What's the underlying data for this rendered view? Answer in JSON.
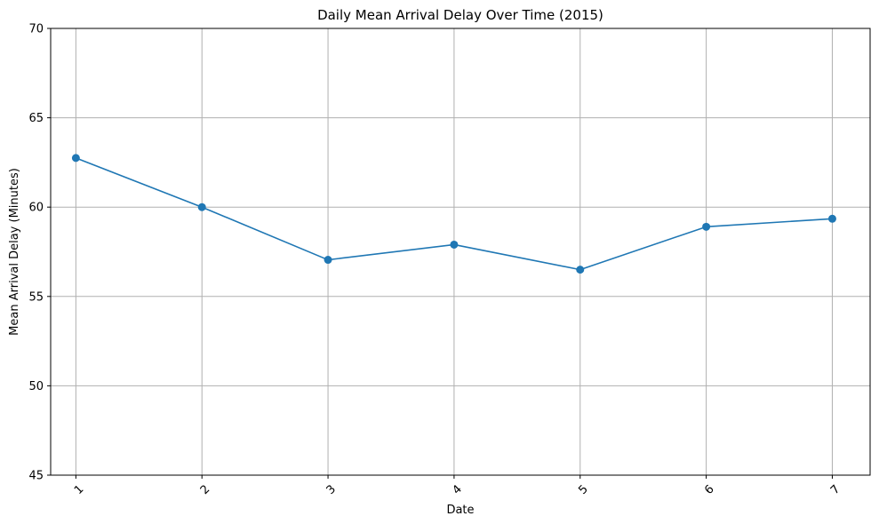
{
  "chart_data": {
    "type": "line",
    "title": "Daily Mean Arrival Delay Over Time (2015)",
    "xlabel": "Date",
    "ylabel": "Mean Arrival Delay (Minutes)",
    "x": [
      1,
      2,
      3,
      4,
      5,
      6,
      7
    ],
    "x_tick_labels": [
      "1",
      "2",
      "3",
      "4",
      "5",
      "6",
      "7"
    ],
    "y_ticks": [
      45,
      50,
      55,
      60,
      65,
      70
    ],
    "y_tick_labels": [
      "45",
      "50",
      "55",
      "60",
      "65",
      "70"
    ],
    "xlim": [
      0.8,
      7.3
    ],
    "ylim": [
      45,
      70
    ],
    "grid": true,
    "x_tick_rotation_deg": 45,
    "series": [
      {
        "values": [
          62.75,
          60.0,
          57.05,
          57.9,
          56.5,
          58.9,
          59.35
        ],
        "color": "#1f77b4",
        "marker": "circle"
      }
    ]
  }
}
